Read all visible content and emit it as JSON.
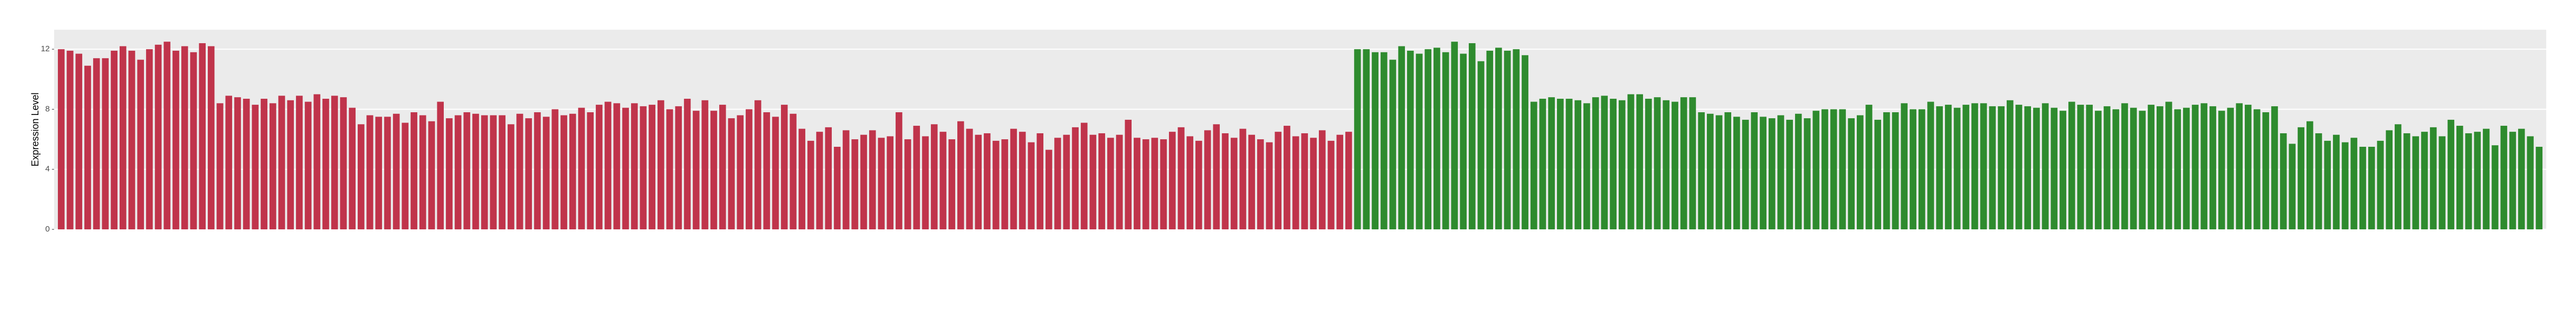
{
  "chart_data": {
    "type": "bar",
    "y_label": "Expression Level",
    "ylim": [
      0,
      13.3
    ],
    "yticks": [
      0,
      4,
      8,
      12
    ],
    "grid": true,
    "series": [
      {
        "color": "#c0344b",
        "values": [
          12.0,
          11.9,
          11.7,
          10.9,
          11.4,
          11.4,
          11.9,
          12.2,
          11.9,
          11.3,
          12.0,
          12.3,
          12.5,
          11.9,
          12.2,
          11.8,
          12.4,
          12.2,
          8.4,
          8.9,
          8.8,
          8.7,
          8.3,
          8.7,
          8.4,
          8.9,
          8.6,
          8.9,
          8.5,
          9.0,
          8.7,
          8.9,
          8.8,
          8.1,
          7.0,
          7.6,
          7.5,
          7.5,
          7.7,
          7.1,
          7.8,
          7.6,
          7.2,
          8.5,
          7.4,
          7.6,
          7.8,
          7.7,
          7.6,
          7.6,
          7.6,
          7.0,
          7.7,
          7.4,
          7.8,
          7.5,
          8.0,
          7.6,
          7.7,
          8.1,
          7.8,
          8.3,
          8.5,
          8.4,
          8.1,
          8.4,
          8.2,
          8.3,
          8.6,
          8.0,
          8.2,
          8.7,
          7.9,
          8.6,
          7.9,
          8.3,
          7.4,
          7.6,
          8.0,
          8.6,
          7.8,
          7.5,
          8.3,
          7.7,
          6.7,
          5.9,
          6.5,
          6.8,
          5.5,
          6.6,
          6.0,
          6.3,
          6.6,
          6.1,
          6.2,
          7.8,
          6.0,
          6.9,
          6.2,
          7.0,
          6.5,
          6.0,
          7.2,
          6.7,
          6.3,
          6.4,
          5.9,
          6.0,
          6.7,
          6.5,
          5.8,
          6.4,
          5.3,
          6.1,
          6.3,
          6.8,
          7.1,
          6.3,
          6.4,
          6.1,
          6.3,
          7.3,
          6.1,
          6.0,
          6.1,
          6.0,
          6.5,
          6.8,
          6.2,
          5.9,
          6.6,
          7.0,
          6.4,
          6.1,
          6.7,
          6.3,
          6.0,
          5.8,
          6.5,
          6.9,
          6.2,
          6.4,
          6.1,
          6.6,
          5.9,
          6.3,
          6.5
        ]
      },
      {
        "color": "#2e8b2e",
        "values": [
          12.0,
          12.0,
          11.8,
          11.8,
          11.3,
          12.2,
          11.9,
          11.7,
          12.0,
          12.1,
          11.8,
          12.5,
          11.7,
          12.4,
          11.2,
          11.9,
          12.1,
          11.9,
          12.0,
          11.6,
          8.5,
          8.7,
          8.8,
          8.7,
          8.7,
          8.6,
          8.4,
          8.8,
          8.9,
          8.7,
          8.6,
          9.0,
          9.0,
          8.7,
          8.8,
          8.6,
          8.5,
          8.8,
          8.8,
          7.8,
          7.7,
          7.6,
          7.8,
          7.5,
          7.3,
          7.8,
          7.5,
          7.4,
          7.6,
          7.3,
          7.7,
          7.4,
          7.9,
          8.0,
          8.0,
          8.0,
          7.4,
          7.6,
          8.3,
          7.3,
          7.8,
          7.8,
          8.4,
          8.0,
          8.0,
          8.5,
          8.2,
          8.3,
          8.1,
          8.3,
          8.4,
          8.4,
          8.2,
          8.2,
          8.6,
          8.3,
          8.2,
          8.1,
          8.4,
          8.1,
          7.9,
          8.5,
          8.3,
          8.3,
          7.9,
          8.2,
          8.0,
          8.4,
          8.1,
          7.9,
          8.3,
          8.2,
          8.5,
          8.0,
          8.1,
          8.3,
          8.4,
          8.2,
          7.9,
          8.1,
          8.4,
          8.3,
          8.0,
          7.8,
          8.2,
          6.4,
          5.7,
          6.8,
          7.2,
          6.4,
          5.9,
          6.3,
          5.8,
          6.1,
          5.5,
          5.5,
          5.9,
          6.6,
          7.0,
          6.4,
          6.2,
          6.5,
          6.8,
          6.2,
          7.3,
          6.9,
          6.4,
          6.5,
          6.7,
          5.6,
          6.9,
          6.5,
          6.7,
          6.2,
          5.5
        ]
      }
    ]
  }
}
